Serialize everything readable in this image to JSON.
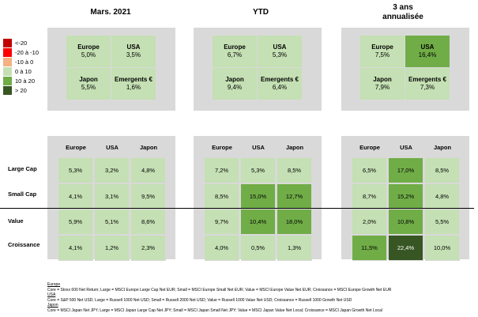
{
  "colors": {
    "green_light": "#c5e0b4",
    "green_mid": "#70ad47",
    "green_dark": "#375623",
    "panel": "#d9d9d9"
  },
  "headers": [
    "Mars. 2021",
    "YTD",
    "3 ans\nannualisée"
  ],
  "legend": [
    {
      "label": "<-20",
      "color": "#c00000"
    },
    {
      "label": "-20 à -10",
      "color": "#ff0000"
    },
    {
      "label": "-10 à 0",
      "color": "#f4b183"
    },
    {
      "label": "0 à 10",
      "color": "#c5e0b4"
    },
    {
      "label": "10 à 20",
      "color": "#70ad47"
    },
    {
      "label": "> 20",
      "color": "#375623"
    }
  ],
  "regions": [
    {
      "cells": [
        {
          "label": "Europe",
          "value": "5,0%",
          "level": 1
        },
        {
          "label": "USA",
          "value": "3,5%",
          "level": 1
        },
        {
          "label": "Japon",
          "value": "5,5%",
          "level": 1
        },
        {
          "label": "Emergents €",
          "value": "1,6%",
          "level": 1
        }
      ]
    },
    {
      "cells": [
        {
          "label": "Europe",
          "value": "6,7%",
          "level": 1
        },
        {
          "label": "USA",
          "value": "5,3%",
          "level": 1
        },
        {
          "label": "Japon",
          "value": "9,4%",
          "level": 1
        },
        {
          "label": "Emergents €",
          "value": "6,4%",
          "level": 1
        }
      ]
    },
    {
      "cells": [
        {
          "label": "Europe",
          "value": "7,5%",
          "level": 1
        },
        {
          "label": "USA",
          "value": "16,4%",
          "level": 2
        },
        {
          "label": "Japon",
          "value": "7,9%",
          "level": 1
        },
        {
          "label": "Emergents €",
          "value": "7,3%",
          "level": 1
        }
      ]
    }
  ],
  "style_columns": [
    "Europe",
    "USA",
    "Japon"
  ],
  "style_rows": [
    "Large Cap",
    "Small Cap",
    "Value",
    "Croissance"
  ],
  "style_grids": [
    [
      [
        "5,3%",
        1
      ],
      [
        "3,2%",
        1
      ],
      [
        "4,8%",
        1
      ],
      [
        "4,1%",
        1
      ],
      [
        "3,1%",
        1
      ],
      [
        "9,5%",
        1
      ],
      [
        "5,9%",
        1
      ],
      [
        "5,1%",
        1
      ],
      [
        "8,6%",
        1
      ],
      [
        "4,1%",
        1
      ],
      [
        "1,2%",
        1
      ],
      [
        "2,3%",
        1
      ]
    ],
    [
      [
        "7,2%",
        1
      ],
      [
        "5,3%",
        1
      ],
      [
        "8,5%",
        1
      ],
      [
        "8,5%",
        1
      ],
      [
        "15,0%",
        2
      ],
      [
        "12,7%",
        2
      ],
      [
        "9,7%",
        1
      ],
      [
        "10,4%",
        2
      ],
      [
        "18,0%",
        2
      ],
      [
        "4,0%",
        1
      ],
      [
        "0,5%",
        1
      ],
      [
        "1,3%",
        1
      ]
    ],
    [
      [
        "6,5%",
        1
      ],
      [
        "17,0%",
        2
      ],
      [
        "8,5%",
        1
      ],
      [
        "8,7%",
        1
      ],
      [
        "15,2%",
        2
      ],
      [
        "4,8%",
        1
      ],
      [
        "2,0%",
        1
      ],
      [
        "10,8%",
        2
      ],
      [
        "5,5%",
        1
      ],
      [
        "11,5%",
        2
      ],
      [
        "22,4%",
        3
      ],
      [
        "10,0%",
        1
      ]
    ]
  ],
  "footnote": [
    {
      "t": "Europe",
      "u": true
    },
    {
      "t": "Core = Stoxx 600 Net Return; Large = MSCI Europe Large Cap Net EUR; Small = MSCI Europe Small Net EUR; Value = MSCI Europe Value Net EUR; Croissance = MSCI Europe Growth Net EUR",
      "u": false
    },
    {
      "t": "USA",
      "u": true
    },
    {
      "t": "Core = S&P 500 Net USD; Large = Russell 1000 Net USD; Small = Russell 2000 Net USD; Value = Russell 1000 Value Net USD; Croissance = Russell 1000 Growth Net USD",
      "u": false
    },
    {
      "t": "Japon",
      "u": true
    },
    {
      "t": "Core = MSCI Japan Net JPY; Large = MSCI Japan Large Cap Net JPY; Small = MSCI Japan Small Net JPY; Value = MSCI Japan Value Net Local; Croissance = MSCI Japan Growth Net Local",
      "u": false
    }
  ]
}
